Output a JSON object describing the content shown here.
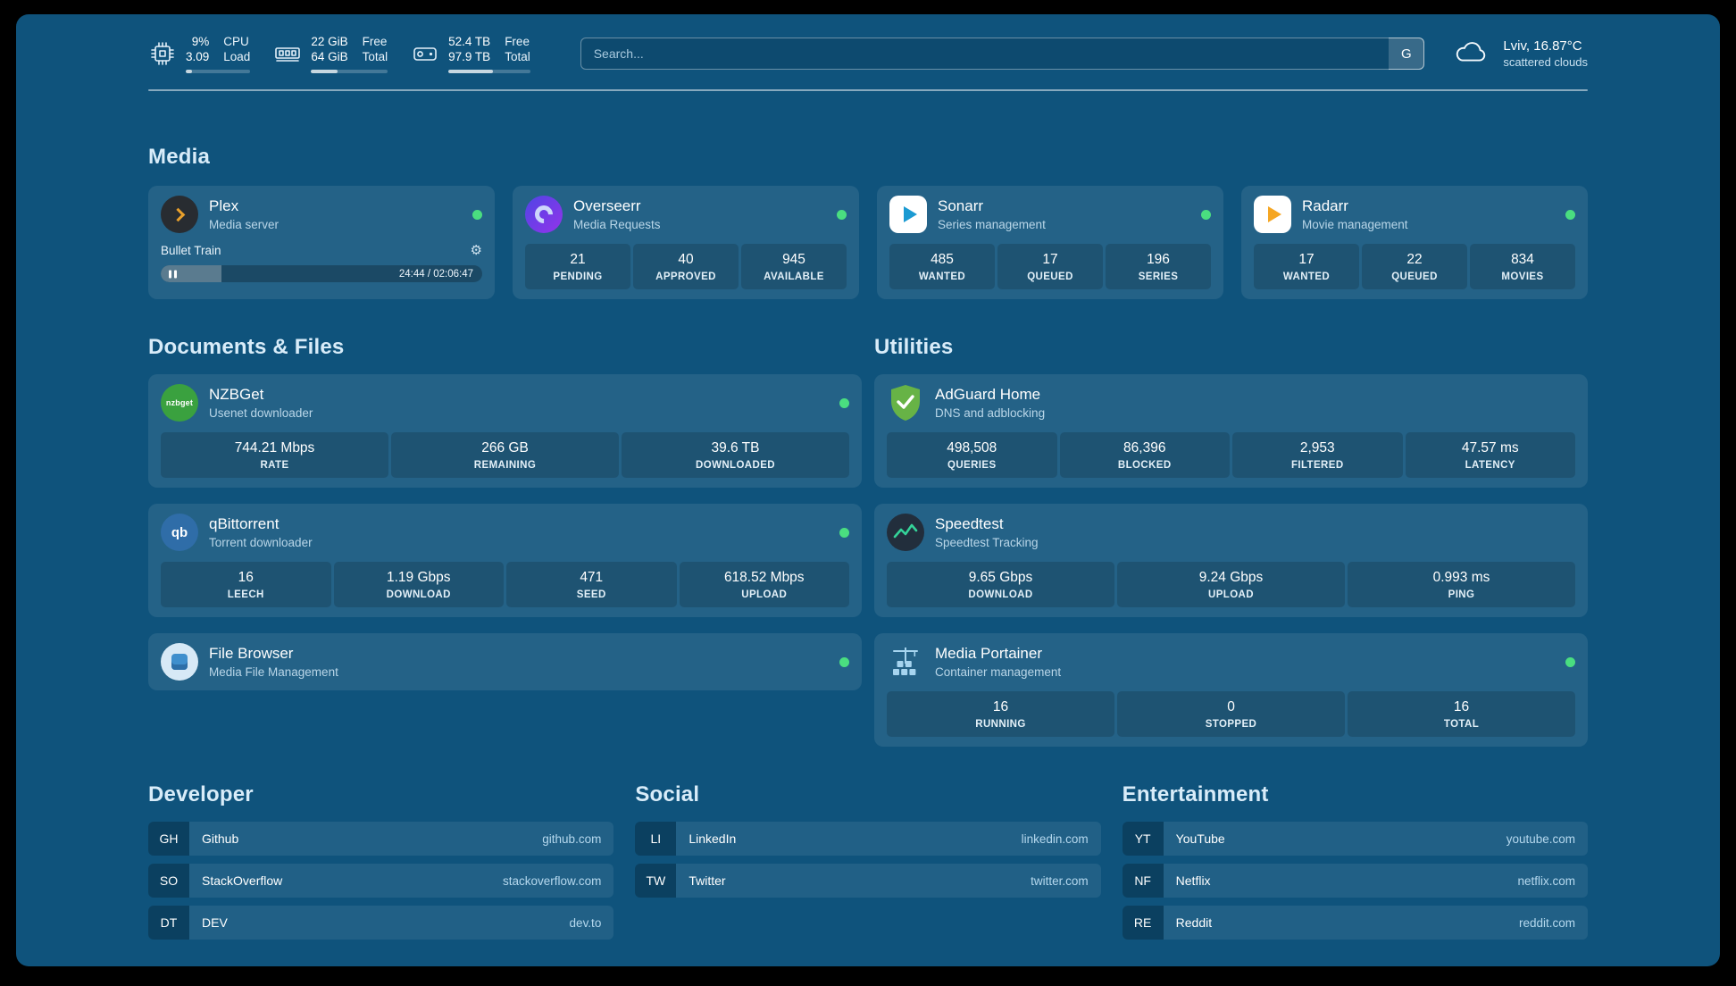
{
  "topbar": {
    "cpu": {
      "value_top": "9%",
      "value_bottom": "3.09",
      "label_top": "CPU",
      "label_bottom": "Load",
      "bar_percent": 9
    },
    "ram": {
      "value_top": "22 GiB",
      "value_bottom": "64 GiB",
      "label_top": "Free",
      "label_bottom": "Total",
      "bar_percent": 34
    },
    "disk": {
      "value_top": "52.4 TB",
      "value_bottom": "97.9 TB",
      "label_top": "Free",
      "label_bottom": "Total",
      "bar_percent": 54
    },
    "search": {
      "placeholder": "Search...",
      "engine_label": "G"
    },
    "weather": {
      "location": "Lviv, 16.87°C",
      "condition": "scattered clouds"
    }
  },
  "media": {
    "title": "Media",
    "plex": {
      "name": "Plex",
      "subtitle": "Media server",
      "now_playing": "Bullet Train",
      "time": "24:44 / 02:06:47",
      "progress_percent": 19
    },
    "overseerr": {
      "name": "Overseerr",
      "subtitle": "Media Requests",
      "stats": [
        {
          "value": "21",
          "label": "PENDING"
        },
        {
          "value": "40",
          "label": "APPROVED"
        },
        {
          "value": "945",
          "label": "AVAILABLE"
        }
      ]
    },
    "sonarr": {
      "name": "Sonarr",
      "subtitle": "Series management",
      "stats": [
        {
          "value": "485",
          "label": "WANTED"
        },
        {
          "value": "17",
          "label": "QUEUED"
        },
        {
          "value": "196",
          "label": "SERIES"
        }
      ]
    },
    "radarr": {
      "name": "Radarr",
      "subtitle": "Movie management",
      "stats": [
        {
          "value": "17",
          "label": "WANTED"
        },
        {
          "value": "22",
          "label": "QUEUED"
        },
        {
          "value": "834",
          "label": "MOVIES"
        }
      ]
    }
  },
  "documents": {
    "title": "Documents & Files",
    "nzbget": {
      "name": "NZBGet",
      "subtitle": "Usenet downloader",
      "icon_text": "nzbget",
      "stats": [
        {
          "value": "744.21 Mbps",
          "label": "RATE"
        },
        {
          "value": "266 GB",
          "label": "REMAINING"
        },
        {
          "value": "39.6 TB",
          "label": "DOWNLOADED"
        }
      ]
    },
    "qbittorrent": {
      "name": "qBittorrent",
      "subtitle": "Torrent downloader",
      "icon_text": "qb",
      "stats": [
        {
          "value": "16",
          "label": "LEECH"
        },
        {
          "value": "1.19 Gbps",
          "label": "DOWNLOAD"
        },
        {
          "value": "471",
          "label": "SEED"
        },
        {
          "value": "618.52 Mbps",
          "label": "UPLOAD"
        }
      ]
    },
    "filebrowser": {
      "name": "File Browser",
      "subtitle": "Media File Management"
    }
  },
  "utilities": {
    "title": "Utilities",
    "adguard": {
      "name": "AdGuard Home",
      "subtitle": "DNS and adblocking",
      "stats": [
        {
          "value": "498,508",
          "label": "QUERIES"
        },
        {
          "value": "86,396",
          "label": "BLOCKED"
        },
        {
          "value": "2,953",
          "label": "FILTERED"
        },
        {
          "value": "47.57 ms",
          "label": "LATENCY"
        }
      ]
    },
    "speedtest": {
      "name": "Speedtest",
      "subtitle": "Speedtest Tracking",
      "stats": [
        {
          "value": "9.65 Gbps",
          "label": "DOWNLOAD"
        },
        {
          "value": "9.24 Gbps",
          "label": "UPLOAD"
        },
        {
          "value": "0.993 ms",
          "label": "PING"
        }
      ]
    },
    "portainer": {
      "name": "Media Portainer",
      "subtitle": "Container management",
      "stats": [
        {
          "value": "16",
          "label": "RUNNING"
        },
        {
          "value": "0",
          "label": "STOPPED"
        },
        {
          "value": "16",
          "label": "TOTAL"
        }
      ]
    }
  },
  "bookmarks": {
    "developer": {
      "title": "Developer",
      "items": [
        {
          "abbr": "GH",
          "name": "Github",
          "url": "github.com"
        },
        {
          "abbr": "SO",
          "name": "StackOverflow",
          "url": "stackoverflow.com"
        },
        {
          "abbr": "DT",
          "name": "DEV",
          "url": "dev.to"
        }
      ]
    },
    "social": {
      "title": "Social",
      "items": [
        {
          "abbr": "LI",
          "name": "LinkedIn",
          "url": "linkedin.com"
        },
        {
          "abbr": "TW",
          "name": "Twitter",
          "url": "twitter.com"
        }
      ]
    },
    "entertainment": {
      "title": "Entertainment",
      "items": [
        {
          "abbr": "YT",
          "name": "YouTube",
          "url": "youtube.com"
        },
        {
          "abbr": "NF",
          "name": "Netflix",
          "url": "netflix.com"
        },
        {
          "abbr": "RE",
          "name": "Reddit",
          "url": "reddit.com"
        }
      ]
    }
  },
  "colors": {
    "background": "#0f537c",
    "status_online": "#4ade80",
    "plex_accent": "#e8a02c"
  }
}
